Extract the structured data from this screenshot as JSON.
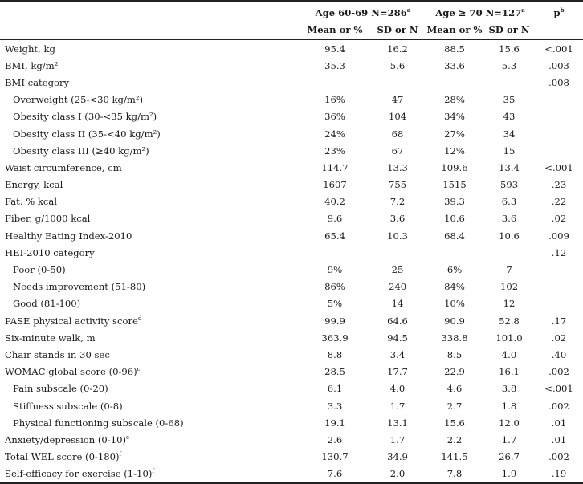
{
  "header": {
    "group1": "Age 60-69 N=286",
    "group1_sup": "a",
    "group2": "Age ≥ 70  N=127",
    "group2_sup": "a",
    "p_label": "p",
    "p_sup": "b",
    "mean_label": "Mean or %",
    "sd_label": "SD or N"
  },
  "rows": [
    {
      "label": "Weight, kg",
      "sup": "",
      "sub": false,
      "m1": "95.4",
      "s1": "16.2",
      "m2": "88.5",
      "s2": "15.6",
      "p": "<.001"
    },
    {
      "label": "BMI, kg/m²",
      "sup": "",
      "sub": false,
      "m1": "35.3",
      "s1": "5.6",
      "m2": "33.6",
      "s2": "5.3",
      "p": ".003"
    },
    {
      "label": "BMI category",
      "sup": "",
      "sub": false,
      "m1": "",
      "s1": "",
      "m2": "",
      "s2": "",
      "p": ".008"
    },
    {
      "label": "Overweight (25-<30 kg/m²)",
      "sup": "",
      "sub": true,
      "m1": "16%",
      "s1": "47",
      "m2": "28%",
      "s2": "35",
      "p": ""
    },
    {
      "label": "Obesity class I (30-<35 kg/m²)",
      "sup": "",
      "sub": true,
      "m1": "36%",
      "s1": "104",
      "m2": "34%",
      "s2": "43",
      "p": ""
    },
    {
      "label": "Obesity class II (35-<40 kg/m²)",
      "sup": "",
      "sub": true,
      "m1": "24%",
      "s1": "68",
      "m2": "27%",
      "s2": "34",
      "p": ""
    },
    {
      "label": "Obesity class III (≥40 kg/m²)",
      "sup": "",
      "sub": true,
      "m1": "23%",
      "s1": "67",
      "m2": "12%",
      "s2": "15",
      "p": ""
    },
    {
      "label": "Waist circumference, cm",
      "sup": "",
      "sub": false,
      "m1": "114.7",
      "s1": "13.3",
      "m2": "109.6",
      "s2": "13.4",
      "p": "<.001"
    },
    {
      "label": "Energy, kcal",
      "sup": "",
      "sub": false,
      "m1": "1607",
      "s1": "755",
      "m2": "1515",
      "s2": "593",
      "p": ".23"
    },
    {
      "label": "Fat, % kcal",
      "sup": "",
      "sub": false,
      "m1": "40.2",
      "s1": "7.2",
      "m2": "39.3",
      "s2": "6.3",
      "p": ".22"
    },
    {
      "label": "Fiber, g/1000 kcal",
      "sup": "",
      "sub": false,
      "m1": "9.6",
      "s1": "3.6",
      "m2": "10.6",
      "s2": "3.6",
      "p": ".02"
    },
    {
      "label": "Healthy Eating Index-2010",
      "sup": "",
      "sub": false,
      "m1": "65.4",
      "s1": "10.3",
      "m2": "68.4",
      "s2": "10.6",
      "p": ".009"
    },
    {
      "label": "HEI-2010 category",
      "sup": "",
      "sub": false,
      "m1": "",
      "s1": "",
      "m2": "",
      "s2": "",
      "p": ".12"
    },
    {
      "label": "Poor (0-50)",
      "sup": "",
      "sub": true,
      "m1": "9%",
      "s1": "25",
      "m2": "6%",
      "s2": "7",
      "p": ""
    },
    {
      "label": "Needs improvement (51-80)",
      "sup": "",
      "sub": true,
      "m1": "86%",
      "s1": "240",
      "m2": "84%",
      "s2": "102",
      "p": ""
    },
    {
      "label": "Good (81-100)",
      "sup": "",
      "sub": true,
      "m1": "5%",
      "s1": "14",
      "m2": "10%",
      "s2": "12",
      "p": ""
    },
    {
      "label": "PASE physical activity score",
      "sup": "d",
      "sub": false,
      "m1": "99.9",
      "s1": "64.6",
      "m2": "90.9",
      "s2": "52.8",
      "p": ".17"
    },
    {
      "label": "Six-minute walk, m",
      "sup": "",
      "sub": false,
      "m1": "363.9",
      "s1": "94.5",
      "m2": "338.8",
      "s2": "101.0",
      "p": ".02"
    },
    {
      "label": "Chair stands in 30 sec",
      "sup": "",
      "sub": false,
      "m1": "8.8",
      "s1": "3.4",
      "m2": "8.5",
      "s2": "4.0",
      "p": ".40"
    },
    {
      "label": "WOMAC global score (0-96)",
      "sup": "c",
      "sub": false,
      "m1": "28.5",
      "s1": "17.7",
      "m2": "22.9",
      "s2": "16.1",
      "p": ".002"
    },
    {
      "label": "Pain subscale (0-20)",
      "sup": "",
      "sub": true,
      "m1": "6.1",
      "s1": "4.0",
      "m2": "4.6",
      "s2": "3.8",
      "p": "<.001"
    },
    {
      "label": "Stiffness subscale (0-8)",
      "sup": "",
      "sub": true,
      "m1": "3.3",
      "s1": "1.7",
      "m2": "2.7",
      "s2": "1.8",
      "p": ".002"
    },
    {
      "label": "Physical functioning subscale (0-68)",
      "sup": "",
      "sub": true,
      "m1": "19.1",
      "s1": "13.1",
      "m2": "15.6",
      "s2": "12.0",
      "p": ".01"
    },
    {
      "label": "Anxiety/depression (0-10)",
      "sup": "e",
      "sub": false,
      "m1": "2.6",
      "s1": "1.7",
      "m2": "2.2",
      "s2": "1.7",
      "p": ".01"
    },
    {
      "label": "Total WEL score (0-180)",
      "sup": "f",
      "sub": false,
      "m1": "130.7",
      "s1": "34.9",
      "m2": "141.5",
      "s2": "26.7",
      "p": ".002"
    },
    {
      "label": "Self-efficacy for exercise (1-10)",
      "sup": "f",
      "sub": false,
      "m1": "7.6",
      "s1": "2.0",
      "m2": "7.8",
      "s2": "1.9",
      "p": ".19"
    }
  ]
}
